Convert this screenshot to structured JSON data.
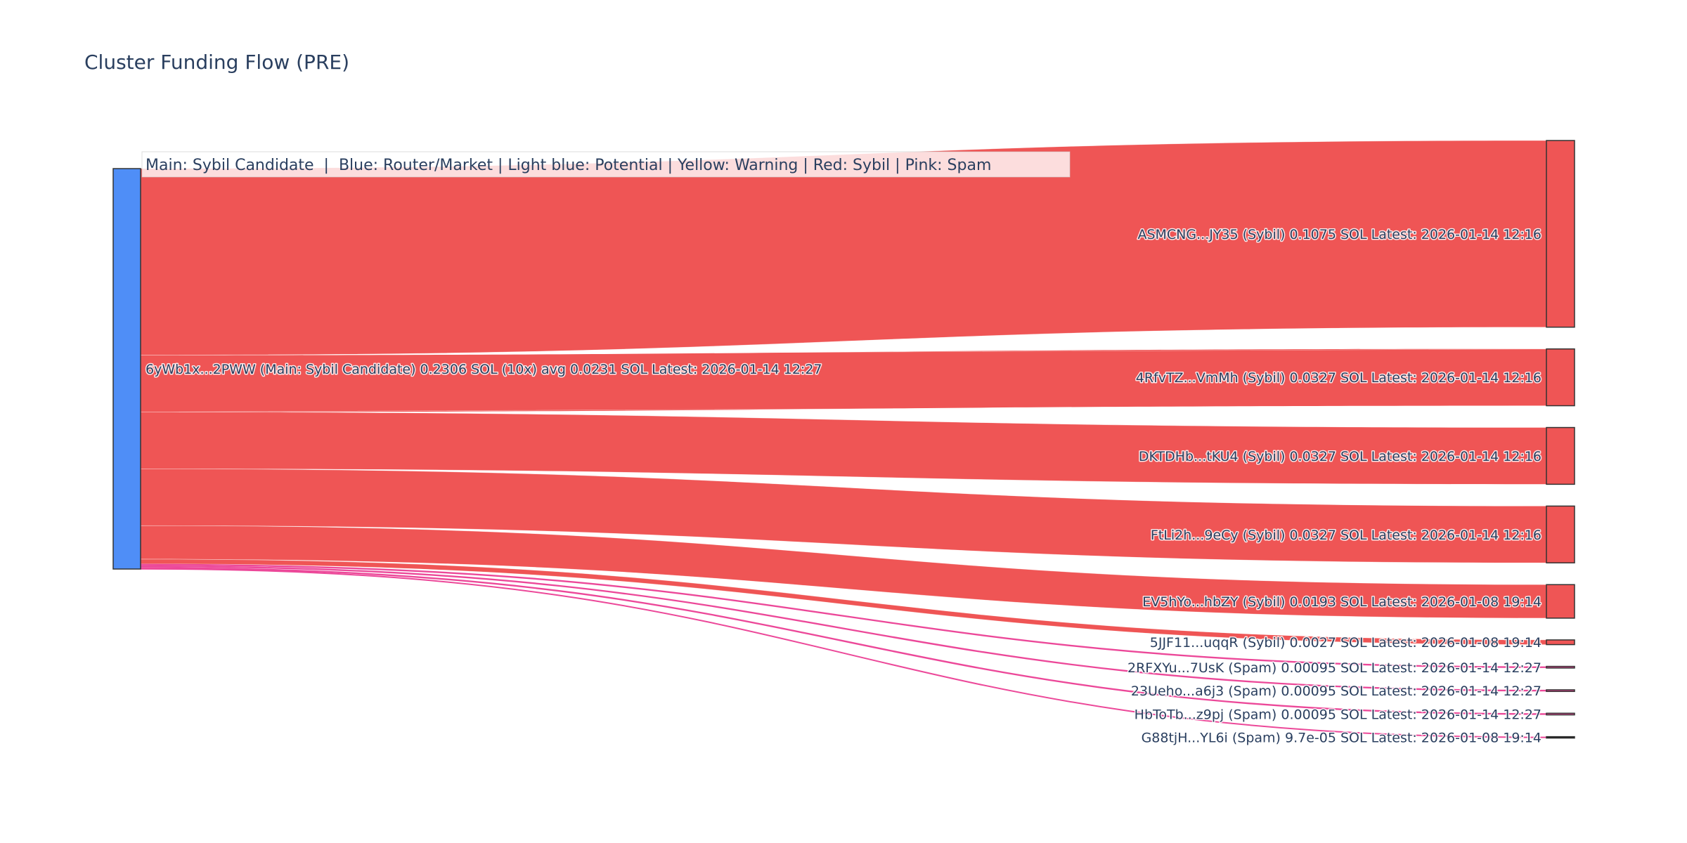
{
  "chart_data": {
    "type": "sankey",
    "title": "Cluster Funding Flow (PRE)",
    "annotation": "Main: Sybil Candidate  |  Blue: Router/Market | Light blue: Potential | Yellow: Warning | Red: Sybil | Pink: Spam",
    "colors": {
      "main": "#4F8EF7",
      "sybil": "#EF5555",
      "spam": "#EC4899",
      "outline": "#333333",
      "annotation_bg": "rgba(255,255,255,0.8)"
    },
    "source": {
      "label": "6yWb1x...2PWW (Main: Sybil Candidate) 0.2306 SOL (10x) avg 0.0231 SOL Latest: 2026-01-14 12:27",
      "value": 0.2306,
      "category": "main"
    },
    "targets": [
      {
        "label": "ASMCNG...JY35 (Sybil) 0.1075 SOL Latest: 2026-01-14 12:16",
        "value": 0.1075,
        "category": "sybil"
      },
      {
        "label": "4RfvTZ...VmMh (Sybil) 0.0327 SOL Latest: 2026-01-14 12:16",
        "value": 0.0327,
        "category": "sybil"
      },
      {
        "label": "DKTDHb...tKU4 (Sybil) 0.0327 SOL Latest: 2026-01-14 12:16",
        "value": 0.0327,
        "category": "sybil"
      },
      {
        "label": "FtLi2h...9eCy (Sybil) 0.0327 SOL Latest: 2026-01-14 12:16",
        "value": 0.0327,
        "category": "sybil"
      },
      {
        "label": "EV5hYo...hbZY (Sybil) 0.0193 SOL Latest: 2026-01-08 19:14",
        "value": 0.0193,
        "category": "sybil"
      },
      {
        "label": "5JJF11...uqqR (Sybil) 0.0027 SOL Latest: 2026-01-08 19:14",
        "value": 0.0027,
        "category": "sybil"
      },
      {
        "label": "2RFXYu...7UsK (Spam) 0.00095 SOL Latest: 2026-01-14 12:27",
        "value": 0.00095,
        "category": "spam"
      },
      {
        "label": "23Ueho...a6j3 (Spam) 0.00095 SOL Latest: 2026-01-14 12:27",
        "value": 0.00095,
        "category": "spam"
      },
      {
        "label": "HbToTb...z9pj (Spam) 0.00095 SOL Latest: 2026-01-14 12:27",
        "value": 0.00095,
        "category": "spam"
      },
      {
        "label": "G88tjH...YL6i (Spam) 9.7e-05 SOL Latest: 2026-01-08 19:14",
        "value": 9.7e-05,
        "category": "spam"
      }
    ]
  }
}
